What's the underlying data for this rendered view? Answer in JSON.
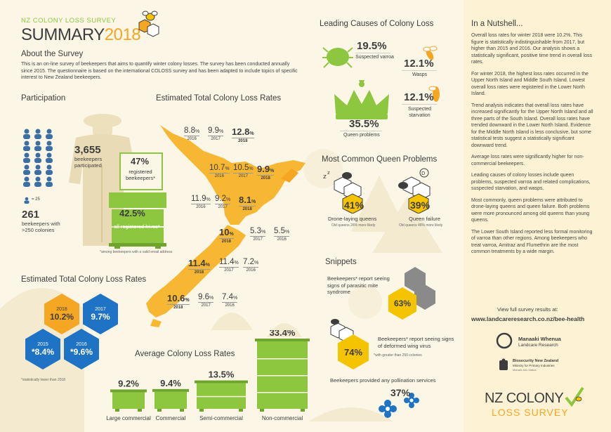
{
  "header": {
    "kicker": "NZ COLONY LOSS SURVEY",
    "title_word": "SUMMARY",
    "title_year": "2018"
  },
  "about": {
    "heading": "About the Survey",
    "text": "This is an on-line survey of beekeepers that aims to quantify winter colony losses. The survey has been conducted annually since 2015. The questionnaire is based on the international COLOSS survey and has been adapted to include topics of specific interest to New Zealand beekeepers."
  },
  "participation": {
    "heading": "Participation",
    "legend": "= 25",
    "beekeepers_value": "3,655",
    "beekeepers_label": "beekeepers participated",
    "registered_value": "47%",
    "registered_label": "registered beekeepers*",
    "hives_value": "42.5%",
    "hives_label": "all registered hives*",
    "large_value": "261",
    "large_label": "beekeepers with >250 colonies",
    "footnote": "*among beekeepers with a valid email address"
  },
  "map_section": {
    "heading": "Estimated Total Colony Loss Rates",
    "regions": [
      {
        "v2016": "8.8",
        "v2017": "9.9",
        "v2018": "12.8",
        "l2016": "2016",
        "l2017": "2017",
        "l2018": "2018"
      },
      {
        "v2016": "10.7",
        "v2017": "10.5",
        "v2018": "9.9",
        "l2016": "2016",
        "l2017": "2017",
        "l2018": "2018"
      },
      {
        "v2016": "11.9",
        "v2017": "9.2",
        "v2018": "8.1",
        "l2016": "2016",
        "l2017": "2017",
        "l2018": "2018"
      },
      {
        "v2018": "10",
        "v2017": "5.3",
        "v2016": "5.5",
        "l2016": "2016",
        "l2017": "2017",
        "l2018": "2018"
      },
      {
        "v2018": "11.4",
        "v2017": "11.4",
        "v2016": "7.2",
        "l2016": "2016",
        "l2017": "2017",
        "l2018": "2018"
      },
      {
        "v2018": "10.6",
        "v2017": "9.6",
        "v2016": "7.4",
        "l2016": "2016",
        "l2017": "2017",
        "l2018": "2018"
      }
    ],
    "pct": "%"
  },
  "total_loss": {
    "heading": "Estimated Total Colony Loss Rates",
    "hexes": [
      {
        "year": "2018",
        "value": "10.2%"
      },
      {
        "year": "2017",
        "value": "9.7%"
      },
      {
        "year": "2015",
        "value": "*8.4%"
      },
      {
        "year": "2016",
        "value": "*9.6%"
      }
    ],
    "footnote": "*statistically lower than 2018"
  },
  "chart_data": {
    "type": "bar",
    "title": "Average Colony Loss Rates",
    "categories": [
      "Large commercial",
      "Commercial",
      "Semi-commercial",
      "Non-commercial"
    ],
    "values": [
      9.2,
      9.4,
      13.5,
      33.4
    ],
    "value_labels": [
      "9.2%",
      "9.4%",
      "13.5%",
      "33.4%"
    ],
    "colors": {
      "hive": "#8dc63f",
      "hive_dark": "#6fa52d"
    }
  },
  "causes": {
    "heading": "Leading Causes of Colony Loss",
    "varroa_value": "19.5%",
    "varroa_label": "Suspected varroa",
    "wasps_value": "12.1%",
    "wasps_label": "Wasps",
    "queen_value": "35.5%",
    "queen_label": "Queen problems",
    "starvation_value": "12.1%",
    "starvation_label": "Suspected starvation"
  },
  "queen_problems": {
    "heading": "Most Common Queen Problems",
    "drone_value": "41%",
    "drone_label": "Drone-laying queens",
    "drone_note": "Old queens 26% more likely",
    "failure_value": "39%",
    "failure_label": "Queen failure",
    "failure_note": "Old queens 46% more likely"
  },
  "snippets": {
    "heading": "Snippets",
    "pms_text": "Beekeepers* report seeing signs of parasitic mite syndrome",
    "pms_value": "63%",
    "dwv_text": "Beekeepers* report seeing signs of deformed wing virus",
    "dwv_value": "74%",
    "footnote": "*with greater than 250 colonies",
    "pollination_text": "Beekeepers provided any pollination services",
    "pollination_value": "37%"
  },
  "nutshell": {
    "heading": "In a Nutshell...",
    "paragraphs": [
      "Overall loss rates for winter 2018 were 10.2%. This figure is statistically indistinguishable from 2017, but higher than 2015 and 2016. Our analysis shows a statistically significant, positive time trend in overall loss rates.",
      "For winter 2018, the highest loss rates occurred in the Upper North Island and Middle South Island. Lowest overall loss rates were registered in the Lower North Island.",
      "Trend analysis indicates that overall loss rates have increased significantly for the Upper North Island and all three parts of the South Island. Overall loss rates have trended downward in the Lower North Island. Evidence for the Middle North Island is less conclusive, but some statistical tests suggest a statistically significant downward trend.",
      "Average loss rates were significantly higher for non-commercial beekeepers.",
      "Leading causes of colony losses include queen problems, suspected varroa and related complications, suspected starvation, and wasps.",
      "Most commonly, queen problems were attributed to drone-laying queens and queen failure. Both problems were more pronounced among old queens than young queens.",
      "The Lower South Island reported less formal monitoring of varroa than other regions. Among beekeepers who treat varroa, Amitraz and Flumethrin are the most common treatments by a wide margin."
    ],
    "results_label": "View full survey results at:",
    "results_url": "www.landcareresearch.co.nz/bee-health"
  },
  "logos": {
    "mw_name": "Manaaki Whenua",
    "mw_sub": "Landcare Research",
    "bnz_name": "Biosecurity New Zealand",
    "bnz_sub": "Ministry for Primary Industries",
    "bnz_sub2": "Manatū Ahu Matua",
    "footer_line1": "NZ COLONY",
    "footer_line2": "LOSS SURVEY"
  }
}
